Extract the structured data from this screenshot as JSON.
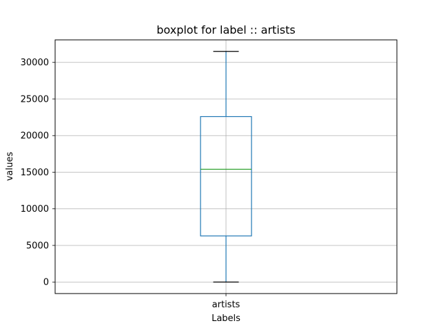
{
  "chart_data": {
    "type": "boxplot",
    "title": "boxplot for label :: artists",
    "xlabel": "Labels",
    "ylabel": "values",
    "categories": [
      "artists"
    ],
    "boxes": [
      {
        "category": "artists",
        "whisker_low": 0,
        "q1": 6300,
        "median": 15400,
        "q3": 22600,
        "whisker_high": 31500
      }
    ],
    "ylim": [
      -1575,
      33075
    ],
    "yticks": [
      0,
      5000,
      10000,
      15000,
      20000,
      25000,
      30000
    ],
    "grid": true,
    "colors": {
      "box": "#1f77b4",
      "median": "#2ca02c",
      "whisker_cap": "#000000",
      "grid": "#b0b0b0"
    }
  }
}
